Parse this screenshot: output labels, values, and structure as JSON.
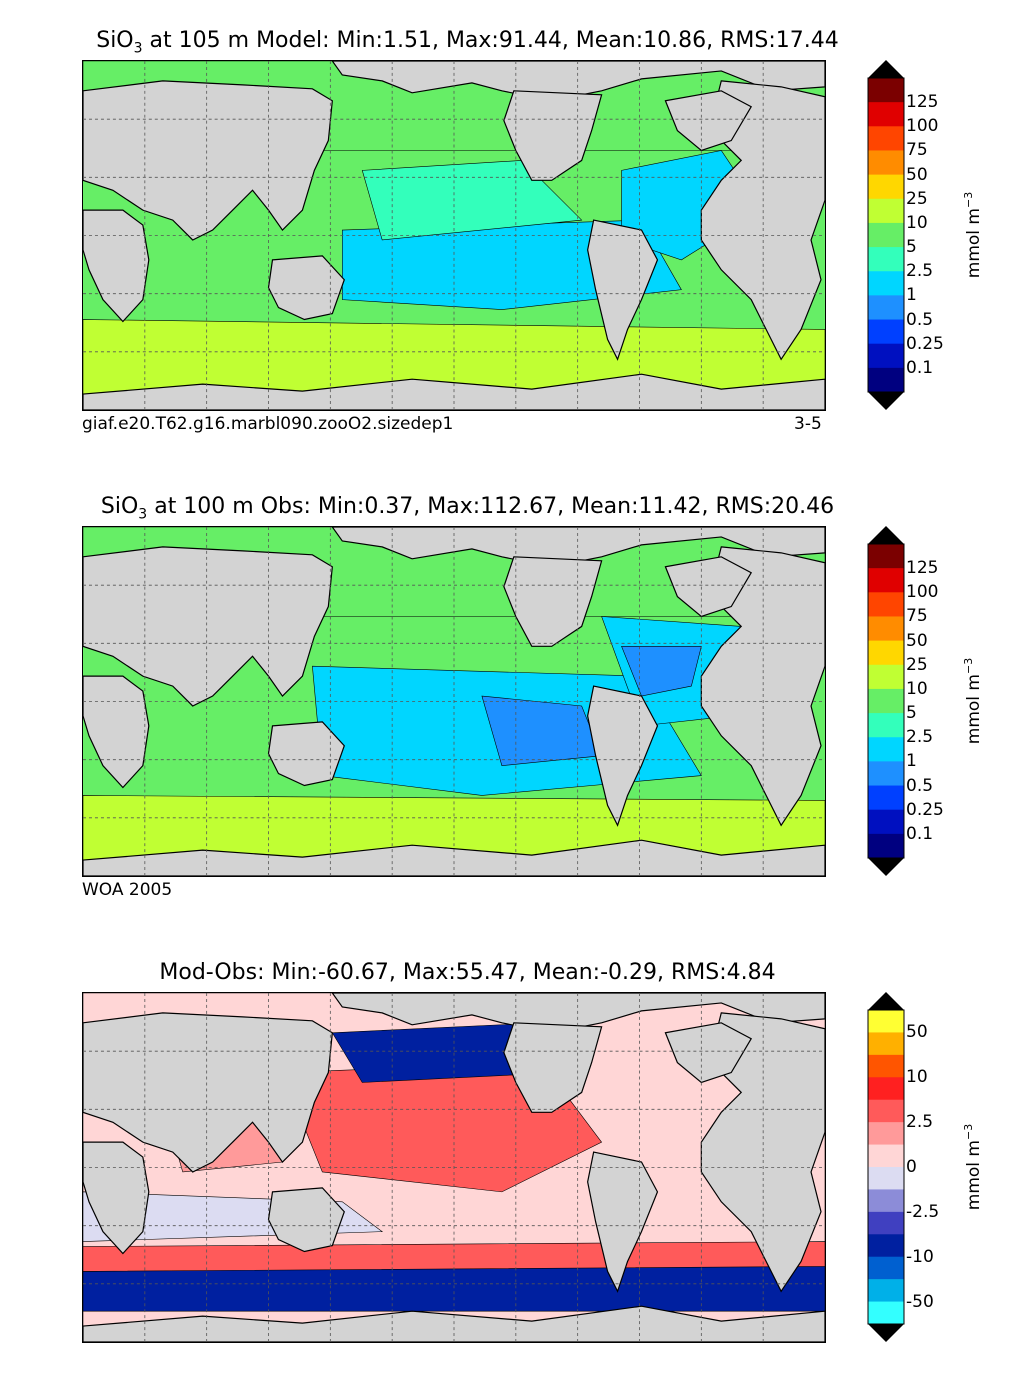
{
  "panels": [
    {
      "title_var": "SiO",
      "title_sub": "3",
      "title_rest": " at 105 m Model: Min:1.51, Max:91.44, Mean:10.86, RMS:17.44",
      "caption_left": "giaf.e20.T62.g16.marbl090.zooO2.sizedep1",
      "caption_right": "3-5",
      "unit": "mmol m",
      "unit_sup": "−3",
      "colorbar": {
        "labels": [
          "125",
          "100",
          "75",
          "50",
          "25",
          "10",
          "5",
          "2.5",
          "1",
          "0.5",
          "0.25",
          "0.1"
        ],
        "colors": [
          "#7b0000",
          "#e00000",
          "#ff4500",
          "#ff8c00",
          "#ffd700",
          "#c0ff33",
          "#66ee66",
          "#33ffbb",
          "#00d6ff",
          "#1e90ff",
          "#0040ff",
          "#0010c0",
          "#000080"
        ],
        "top_color": "#000000",
        "bottom_color": "#000000"
      },
      "map_fill": [
        "#66ee66",
        "#33ffbb",
        "#c0ff33",
        "#00d6ff"
      ]
    },
    {
      "title_var": "SiO",
      "title_sub": "3",
      "title_rest": " at 100 m Obs: Min:0.37, Max:112.67, Mean:11.42, RMS:20.46",
      "caption_left": "WOA 2005",
      "caption_right": "",
      "unit": "mmol m",
      "unit_sup": "−3",
      "colorbar": {
        "labels": [
          "125",
          "100",
          "75",
          "50",
          "25",
          "10",
          "5",
          "2.5",
          "1",
          "0.5",
          "0.25",
          "0.1"
        ],
        "colors": [
          "#7b0000",
          "#e00000",
          "#ff4500",
          "#ff8c00",
          "#ffd700",
          "#c0ff33",
          "#66ee66",
          "#33ffbb",
          "#00d6ff",
          "#1e90ff",
          "#0040ff",
          "#0010c0",
          "#000080"
        ],
        "top_color": "#000000",
        "bottom_color": "#000000"
      },
      "map_fill": [
        "#66ee66",
        "#33ffbb",
        "#c0ff33",
        "#00d6ff",
        "#1e90ff"
      ]
    },
    {
      "title_var": "",
      "title_sub": "",
      "title_rest": "Mod-Obs: Min:-60.67, Max:55.47, Mean:-0.29, RMS:4.84",
      "caption_left": "",
      "caption_right": "",
      "unit": "mmol m",
      "unit_sup": "−3",
      "colorbar": {
        "labels": [
          "50",
          "",
          "10",
          "",
          "2.5",
          "",
          "0",
          "",
          "-2.5",
          "",
          "-10",
          "",
          "-50"
        ],
        "colors": [
          "#ffff33",
          "#ffb000",
          "#ff5500",
          "#ff2020",
          "#ff5a5a",
          "#ff9a9a",
          "#ffd6d6",
          "#dcdcf2",
          "#8c8cd8",
          "#4040c0",
          "#0020a0",
          "#0060d0",
          "#00b0e8",
          "#33ffff"
        ],
        "top_color": "#000000",
        "bottom_color": "#000000"
      },
      "map_fill": [
        "#ffd6d6",
        "#ff9a9a",
        "#ff5a5a",
        "#dcdcf2",
        "#8c8cd8",
        "#0020a0"
      ]
    }
  ]
}
